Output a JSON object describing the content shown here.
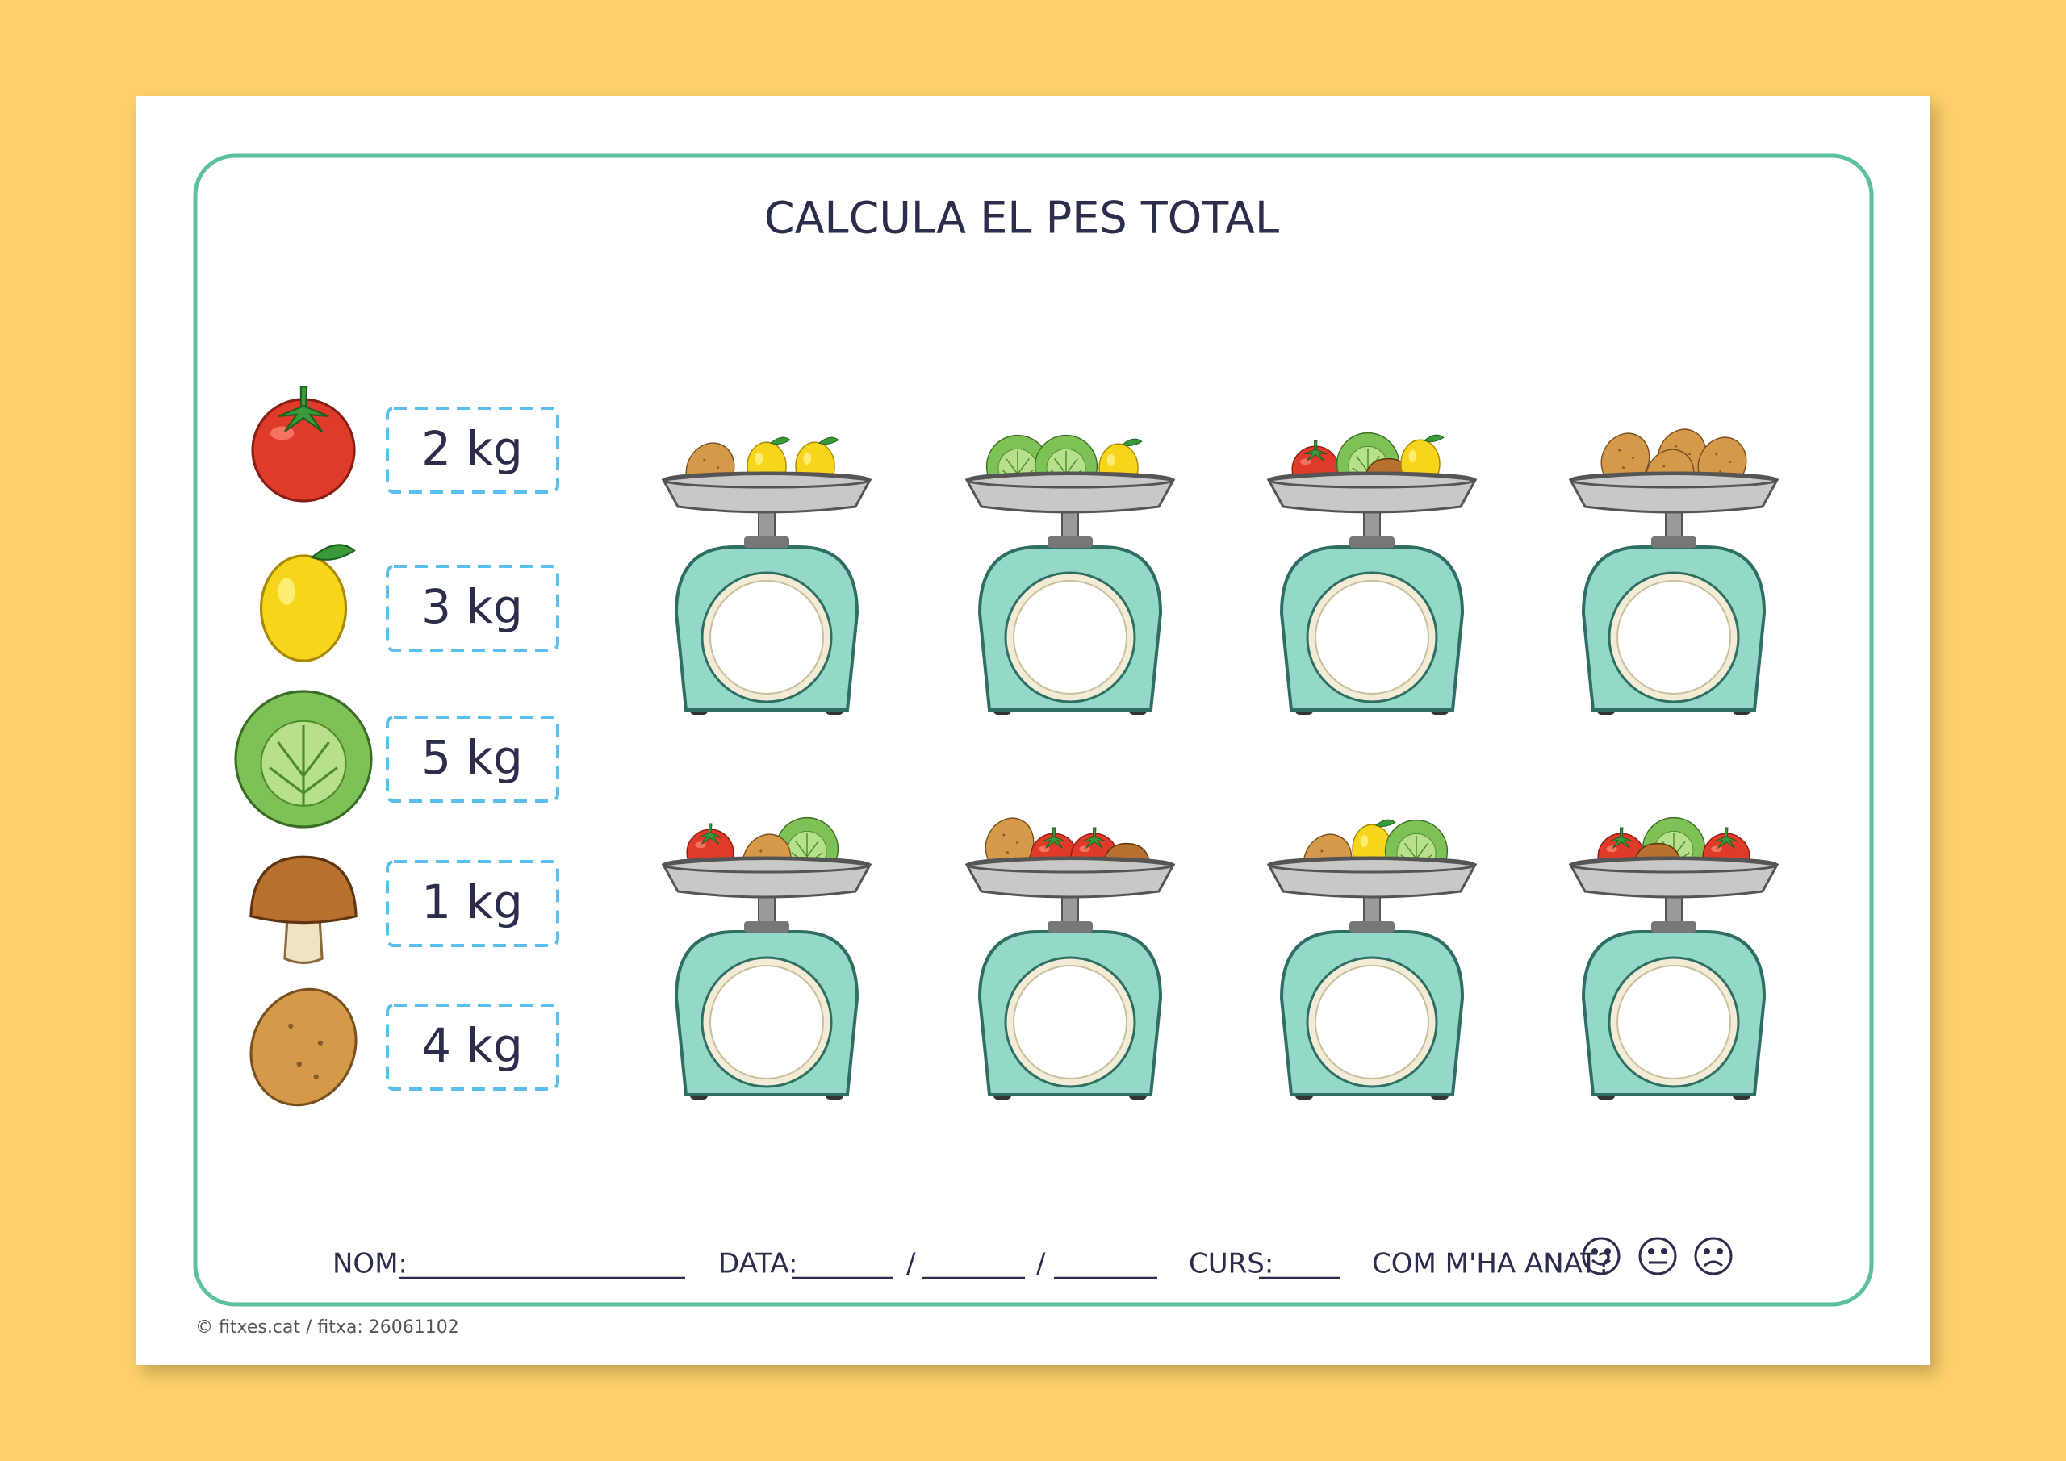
{
  "header": {
    "title": "CALCULA EL PES TOTAL"
  },
  "legend": {
    "weights": [
      "2 kg",
      "3 kg",
      "5 kg",
      "1 kg",
      "4 kg"
    ]
  },
  "footer": {
    "name_label": "NOM:",
    "date_label": "DATA:",
    "date_separators": [
      "/",
      "/"
    ],
    "course_label": "CURS:",
    "feedback_label": "COM M'HA ANAT?"
  },
  "credit": "© fitxes.cat / fitxa: 26061102"
}
